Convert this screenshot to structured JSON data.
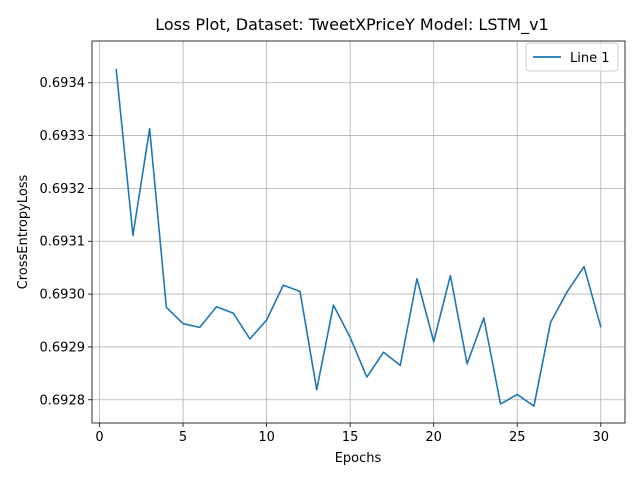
{
  "chart_data": {
    "type": "line",
    "title": "Loss Plot, Dataset: TweetXPriceY Model: LSTM_v1",
    "xlabel": "Epochs",
    "ylabel": "CrossEntropyLoss",
    "xlim": [
      -0.45,
      31.45
    ],
    "ylim": [
      0.692756,
      0.693479
    ],
    "xticks": [
      0,
      5,
      10,
      15,
      20,
      25,
      30
    ],
    "yticks": [
      0.6928,
      0.6929,
      0.693,
      0.6931,
      0.6932,
      0.6933,
      0.6934
    ],
    "xtick_labels": [
      "0",
      "5",
      "10",
      "15",
      "20",
      "25",
      "30"
    ],
    "ytick_labels": [
      "0.6928",
      "0.6929",
      "0.6930",
      "0.6931",
      "0.6932",
      "0.6933",
      "0.6934"
    ],
    "grid": true,
    "legend_position": "top-right",
    "series": [
      {
        "name": "Line 1",
        "color": "#1f77b4",
        "x": [
          1,
          2,
          3,
          4,
          5,
          6,
          7,
          8,
          9,
          10,
          11,
          12,
          13,
          14,
          15,
          16,
          17,
          18,
          19,
          20,
          21,
          22,
          23,
          24,
          25,
          26,
          27,
          28,
          29,
          30
        ],
        "y": [
          0.693425,
          0.693111,
          0.693313,
          0.692975,
          0.692944,
          0.692937,
          0.692976,
          0.692964,
          0.692915,
          0.692951,
          0.693017,
          0.693005,
          0.692819,
          0.692979,
          0.692918,
          0.692843,
          0.69289,
          0.692865,
          0.693029,
          0.69291,
          0.693035,
          0.692868,
          0.692955,
          0.692792,
          0.69281,
          0.692788,
          0.692947,
          0.693005,
          0.693052,
          0.692938
        ]
      }
    ]
  }
}
